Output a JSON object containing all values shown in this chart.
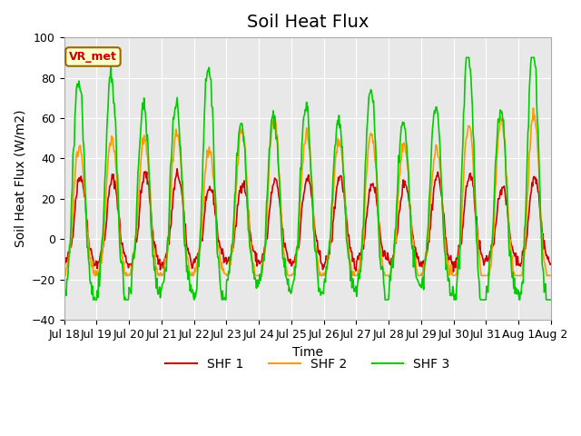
{
  "title": "Soil Heat Flux",
  "xlabel": "Time",
  "ylabel": "Soil Heat Flux (W/m2)",
  "ylim": [
    -40,
    100
  ],
  "yticks": [
    -40,
    -20,
    0,
    20,
    40,
    60,
    80,
    100
  ],
  "xtick_positions": [
    0,
    1,
    2,
    3,
    4,
    5,
    6,
    7,
    8,
    9,
    10,
    11,
    12,
    13,
    14,
    15
  ],
  "xtick_labels": [
    "Jul 18",
    "Jul 19",
    "Jul 20",
    "Jul 21",
    "Jul 22",
    "Jul 23",
    "Jul 24",
    "Jul 25",
    "Jul 26",
    "Jul 27",
    "Jul 28",
    "Jul 29",
    "Jul 30",
    "Jul 31",
    "Aug 1",
    "Aug 2"
  ],
  "legend_labels": [
    "SHF 1",
    "SHF 2",
    "SHF 3"
  ],
  "legend_colors": [
    "#cc0000",
    "#ff9900",
    "#00cc00"
  ],
  "line_colors": [
    "#cc0000",
    "#ff9900",
    "#00cc00"
  ],
  "vr_met_label": "VR_met",
  "vr_met_bg": "#ffffcc",
  "vr_met_border": "#996600",
  "vr_met_text": "#cc0000",
  "background_color": "#ffffff",
  "plot_bg_color": "#e8e8e8",
  "grid_color": "#ffffff",
  "n_days": 15,
  "points_per_day": 48,
  "title_fontsize": 14,
  "axis_label_fontsize": 10,
  "tick_fontsize": 9
}
